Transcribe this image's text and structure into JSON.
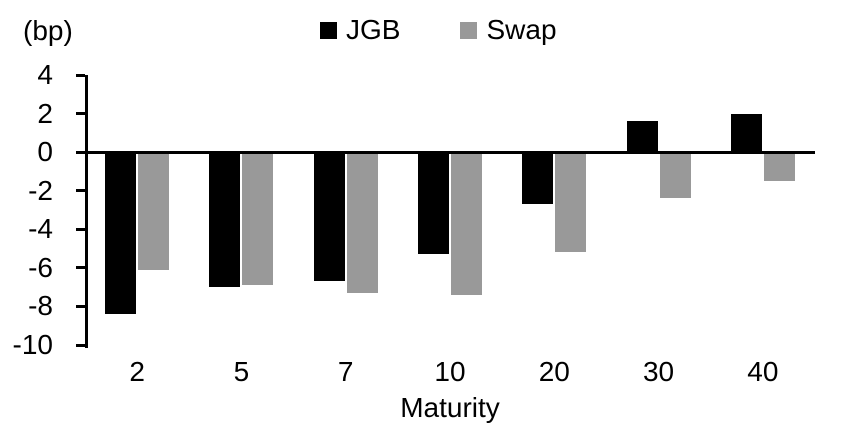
{
  "unit_label": "(bp)",
  "chart_data": {
    "type": "bar",
    "title": "",
    "xlabel": "Maturity",
    "ylabel": "(bp)",
    "categories": [
      "2",
      "5",
      "7",
      "10",
      "20",
      "30",
      "40"
    ],
    "series": [
      {
        "name": "JGB",
        "color": "#000000",
        "values": [
          -8.4,
          -7.0,
          -6.7,
          -5.3,
          -2.7,
          1.6,
          2.0
        ]
      },
      {
        "name": "Swap",
        "color": "#999999",
        "values": [
          -6.1,
          -6.9,
          -7.3,
          -7.4,
          -5.2,
          -2.4,
          -1.5
        ]
      }
    ],
    "ylim": [
      -10,
      4
    ],
    "yticks": [
      4,
      2,
      0,
      -2,
      -4,
      -6,
      -8,
      -10
    ],
    "grid": false,
    "legend_position": "top-center",
    "axis_color": "#000000"
  }
}
